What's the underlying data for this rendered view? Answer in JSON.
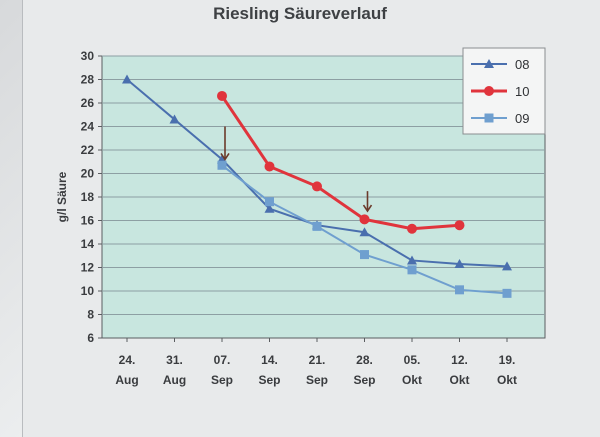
{
  "chart_data": {
    "type": "line",
    "title": "Riesling Säureverlauf",
    "ylabel": "g/l Säure",
    "xlabel": "",
    "categories": [
      [
        "24.",
        "Aug"
      ],
      [
        "31.",
        "Aug"
      ],
      [
        "07.",
        "Sep"
      ],
      [
        "14.",
        "Sep"
      ],
      [
        "21.",
        "Sep"
      ],
      [
        "28.",
        "Sep"
      ],
      [
        "05.",
        "Okt"
      ],
      [
        "12.",
        "Okt"
      ],
      [
        "19.",
        "Okt"
      ]
    ],
    "ylim": [
      6,
      30
    ],
    "yticks": [
      6,
      8,
      10,
      12,
      14,
      16,
      18,
      20,
      22,
      24,
      26,
      28,
      30
    ],
    "grid": true,
    "legend": "top-right",
    "series": [
      {
        "name": "08",
        "color": "#4a6fae",
        "marker": "triangle",
        "values": [
          28.0,
          24.6,
          21.2,
          17.0,
          15.6,
          15.0,
          12.6,
          12.3,
          12.1
        ]
      },
      {
        "name": "10",
        "color": "#e0343c",
        "marker": "circle",
        "values": [
          null,
          null,
          26.6,
          20.6,
          18.9,
          16.1,
          15.3,
          15.6,
          null
        ]
      },
      {
        "name": "09",
        "color": "#6f9fcf",
        "marker": "square",
        "values": [
          null,
          null,
          20.7,
          17.6,
          15.5,
          13.1,
          11.8,
          10.1,
          9.8
        ]
      }
    ],
    "annotations": [
      {
        "type": "arrow",
        "category_index": 2,
        "from_y": 24.0,
        "to_y": 21.2,
        "color": "#6b3a2a"
      },
      {
        "type": "arrow",
        "category_index": 5,
        "from_y": 18.5,
        "to_y": 16.8,
        "color": "#6b3a2a"
      }
    ],
    "colors": {
      "plot_bg": "#c8e6df",
      "gridline": "#8d9fa3",
      "axis": "#5a5d60"
    }
  }
}
